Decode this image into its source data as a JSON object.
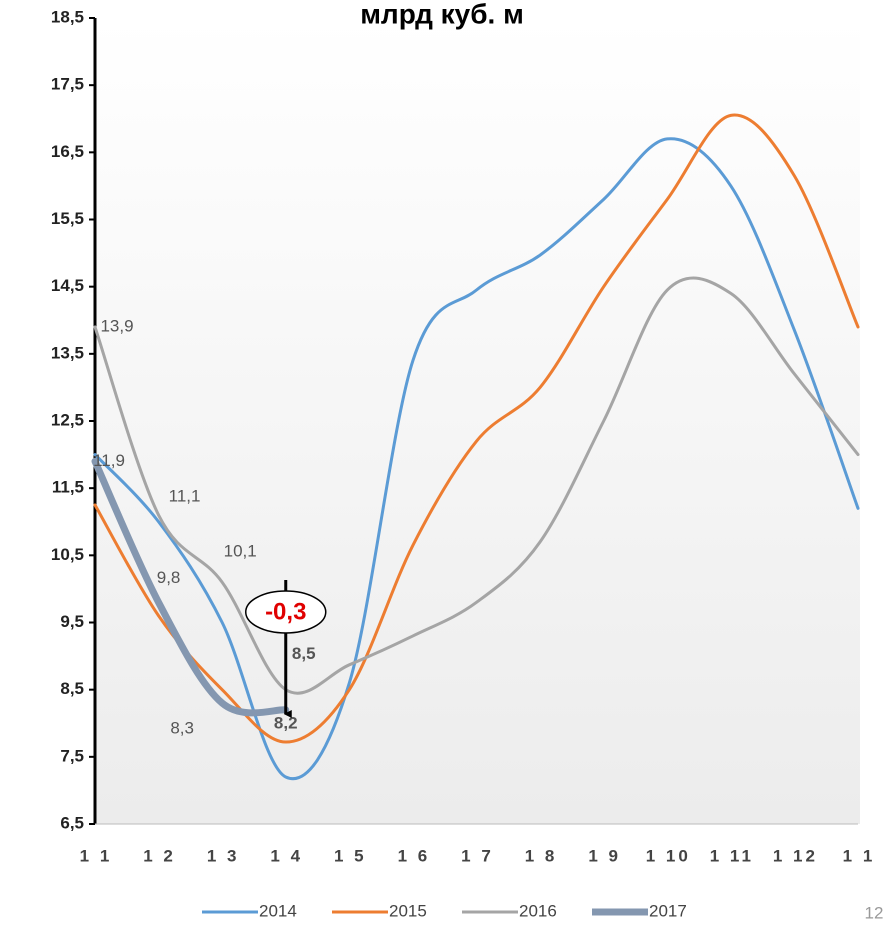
{
  "chart_data": {
    "type": "line",
    "title": "млрд  куб. м",
    "categories": [
      "1 1",
      "1 2",
      "1 3",
      "1 4",
      "1 5",
      "1 6",
      "1 7",
      "1 8",
      "1 9",
      "1 10",
      "1 11",
      "1 12",
      "1 1"
    ],
    "ylim": [
      6.5,
      18.5
    ],
    "yticks": [
      {
        "value": 6.5,
        "label": "6,5"
      },
      {
        "value": 7.5,
        "label": "7,5"
      },
      {
        "value": 8.5,
        "label": "8,5"
      },
      {
        "value": 9.5,
        "label": "9,5"
      },
      {
        "value": 10.5,
        "label": "10,5"
      },
      {
        "value": 11.5,
        "label": "11,5"
      },
      {
        "value": 12.5,
        "label": "12,5"
      },
      {
        "value": 13.5,
        "label": "13,5"
      },
      {
        "value": 14.5,
        "label": "14,5"
      },
      {
        "value": 15.5,
        "label": "15,5"
      },
      {
        "value": 16.5,
        "label": "16,5"
      },
      {
        "value": 17.5,
        "label": "17,5"
      },
      {
        "value": 18.5,
        "label": "18,5"
      }
    ],
    "series": [
      {
        "name": "2014",
        "color": "#5b9bd5",
        "width": 3,
        "values": [
          12.0,
          11.0,
          9.5,
          7.2,
          8.6,
          13.4,
          14.45,
          14.97,
          15.8,
          16.7,
          16.0,
          13.85,
          11.2
        ]
      },
      {
        "name": "2015",
        "color": "#ed7d31",
        "width": 3,
        "values": [
          11.25,
          9.6,
          8.5,
          7.72,
          8.5,
          10.65,
          12.2,
          13.0,
          14.5,
          15.8,
          17.05,
          16.15,
          13.9
        ]
      },
      {
        "name": "2016",
        "color": "#a5a5a5",
        "width": 3,
        "values": [
          13.9,
          11.1,
          10.1,
          8.5,
          8.87,
          9.3,
          9.8,
          10.7,
          12.5,
          14.45,
          14.4,
          13.2,
          12.0
        ],
        "value_labels": [
          "13,9",
          "11,1",
          "10,1",
          "8,5",
          null,
          null,
          null,
          null,
          null,
          null,
          null,
          null,
          null
        ]
      },
      {
        "name": "2017",
        "color": "#8497b0",
        "width": 7,
        "values": [
          11.9,
          9.8,
          8.3,
          8.2,
          null,
          null,
          null,
          null,
          null,
          null,
          null,
          null,
          null
        ],
        "value_labels": [
          "11,9",
          "9,8",
          "8,3",
          "8,2",
          null,
          null,
          null,
          null,
          null,
          null,
          null,
          null,
          null
        ]
      }
    ],
    "annotation": "-0,3",
    "page_number": "12"
  }
}
